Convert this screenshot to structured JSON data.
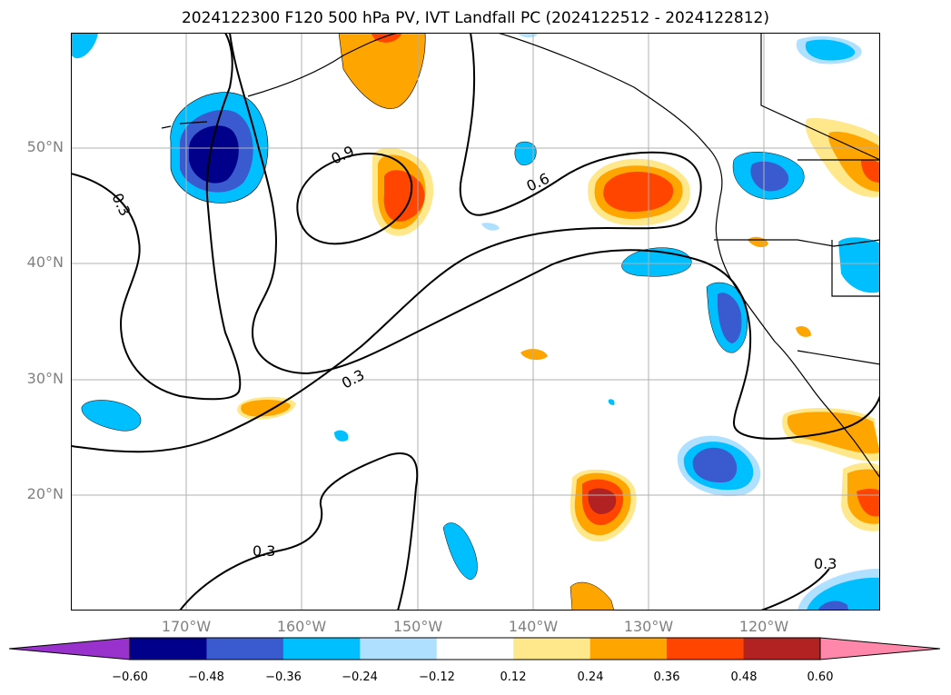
{
  "title": "2024122300 F120 500 hPa PV, IVT Landfall PC (2024122512 - 2024122812)",
  "map": {
    "lat_labels": [
      "50°N",
      "40°N",
      "30°N",
      "20°N"
    ],
    "lon_labels": [
      "170°W",
      "160°W",
      "150°W",
      "140°W",
      "130°W",
      "120°W"
    ],
    "contour_labels": [
      "0.9",
      "0.6",
      "0.3",
      "0.3",
      "0.3",
      "0.3"
    ]
  },
  "colorbar": {
    "ticks": [
      "−0.60",
      "−0.48",
      "−0.36",
      "−0.24",
      "−0.12",
      "0.12",
      "0.24",
      "0.36",
      "0.48",
      "0.60"
    ],
    "colors": [
      "#9932cc",
      "#00008b",
      "#3a5bcf",
      "#00bfff",
      "#b0e0ff",
      "#ffffff",
      "#ffe88c",
      "#ffa500",
      "#ff4500",
      "#b22222",
      "#ff88aa"
    ]
  }
}
